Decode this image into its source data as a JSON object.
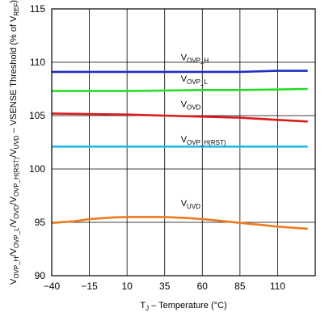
{
  "chart_data": {
    "type": "line",
    "xlabel": {
      "prefix": "T",
      "sub": "J",
      "rest": " – Temperature (°C)"
    },
    "ylabel": {
      "parts": [
        [
          "V",
          ""
        ],
        [
          "OVP_H",
          "sub"
        ],
        [
          "/V",
          ""
        ],
        [
          "OVP_L",
          "sub"
        ],
        [
          "/V",
          ""
        ],
        [
          "OVD",
          "sub"
        ],
        [
          "/V",
          ""
        ],
        [
          "OVP_H(RST)",
          "sub"
        ],
        [
          "/V",
          ""
        ],
        [
          "UVD",
          "sub"
        ],
        [
          " – VSENSE Threshold (% of V",
          ""
        ],
        [
          "REF",
          "sub"
        ],
        [
          ")",
          ""
        ]
      ]
    },
    "xlim": [
      -40,
      135
    ],
    "ylim": [
      90,
      115
    ],
    "xticks": [
      -40,
      -15,
      10,
      35,
      60,
      85,
      110
    ],
    "yticks": [
      90,
      95,
      100,
      105,
      110,
      115
    ],
    "grid": true,
    "series": [
      {
        "key": "ovp_h",
        "main": "V",
        "sub": "OVP_H",
        "color": "#1f2fbf",
        "label_at": [
          35,
          110.2
        ],
        "x": [
          -40,
          -15,
          10,
          35,
          60,
          85,
          110,
          130
        ],
        "y": [
          109.1,
          109.1,
          109.1,
          109.1,
          109.1,
          109.1,
          109.2,
          109.2
        ]
      },
      {
        "key": "ovp_l",
        "main": "V",
        "sub": "OVP_L",
        "color": "#22dd22",
        "label_at": [
          35,
          108.2
        ],
        "x": [
          -40,
          -15,
          10,
          35,
          60,
          85,
          110,
          130
        ],
        "y": [
          107.3,
          107.3,
          107.3,
          107.35,
          107.4,
          107.4,
          107.45,
          107.5
        ]
      },
      {
        "key": "ovd",
        "main": "V",
        "sub": "OVD",
        "color": "#dd1a1a",
        "label_at": [
          35,
          105.8
        ],
        "x": [
          -40,
          -15,
          10,
          35,
          60,
          85,
          110,
          130
        ],
        "y": [
          105.2,
          105.15,
          105.1,
          105.0,
          104.9,
          104.8,
          104.6,
          104.45
        ]
      },
      {
        "key": "ovp_h_rst",
        "main": "V",
        "sub": "OVP_H(RST)",
        "color": "#22b8ee",
        "label_at": [
          35,
          102.5
        ],
        "x": [
          -40,
          -15,
          10,
          35,
          60,
          85,
          110,
          130
        ],
        "y": [
          102.1,
          102.1,
          102.1,
          102.1,
          102.1,
          102.1,
          102.1,
          102.1
        ]
      },
      {
        "key": "uvd",
        "main": "V",
        "sub": "UVD",
        "color": "#f07a1e",
        "label_at": [
          35,
          96.5
        ],
        "x": [
          -40,
          -25,
          -15,
          0,
          10,
          25,
          35,
          50,
          60,
          75,
          85,
          100,
          110,
          130
        ],
        "y": [
          94.95,
          95.1,
          95.3,
          95.45,
          95.5,
          95.5,
          95.5,
          95.4,
          95.3,
          95.1,
          94.95,
          94.75,
          94.6,
          94.4
        ]
      }
    ]
  }
}
